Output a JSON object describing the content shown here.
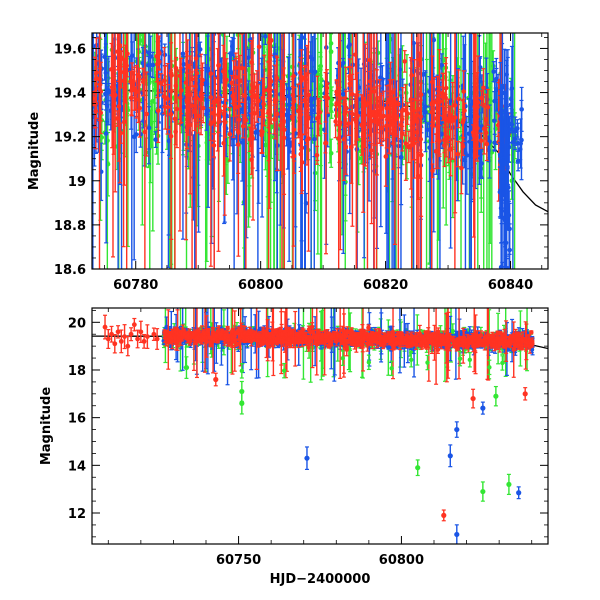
{
  "chart_data": [
    {
      "type": "scatter",
      "panel": "top",
      "xlabel": "",
      "ylabel": "Magnitude",
      "xlim": [
        60773,
        60846
      ],
      "ylim": [
        19.67,
        18.6
      ],
      "y_inverted": true,
      "grid": false,
      "xticks": [
        60780,
        60800,
        60820,
        60840
      ],
      "yticks": [
        18.6,
        18.8,
        19,
        19.2,
        19.4,
        19.6
      ],
      "ytick_labels": [
        "18.6",
        "18.8",
        "19",
        "19.2",
        "19.4",
        "19.6"
      ],
      "xtick_labels": [
        "60780",
        "60800",
        "60820",
        "60840"
      ],
      "colors": {
        "green": "#33e633",
        "blue": "#1a55e6",
        "red": "#ff3322",
        "model": "#000000"
      },
      "model_curve": {
        "x": [
          60773,
          60780,
          60790,
          60800,
          60810,
          60815,
          60820,
          60825,
          60830,
          60835,
          60838,
          60840,
          60842,
          60844,
          60846
        ],
        "y": [
          19.41,
          19.41,
          19.4,
          19.39,
          19.38,
          19.37,
          19.36,
          19.33,
          19.29,
          19.22,
          19.13,
          19.03,
          18.95,
          18.89,
          18.86
        ]
      },
      "series": [
        {
          "color": "green",
          "data_region": {
            "x_range": [
              60773,
              60840
            ],
            "y_center": [
              19.45,
              19.25
            ],
            "scatter": 0.14
          }
        },
        {
          "color": "blue",
          "data_region": {
            "x_range": [
              60773,
              60841
            ],
            "y_center": [
              19.45,
              19.25
            ],
            "scatter": 0.12
          }
        },
        {
          "color": "red",
          "data_region": {
            "x_range": [
              60773,
              60839
            ],
            "y_center": [
              19.43,
              19.25
            ],
            "scatter": 0.1
          }
        }
      ]
    },
    {
      "type": "scatter",
      "panel": "bottom",
      "xlabel": "HJD−2400000",
      "ylabel": "Magnitude",
      "xlim": [
        60705,
        60845
      ],
      "ylim": [
        20.6,
        10.7
      ],
      "y_inverted": true,
      "grid": false,
      "xticks": [
        60750,
        60800
      ],
      "yticks": [
        12,
        14,
        16,
        18,
        20
      ],
      "xtick_labels": [
        "60750",
        "60800"
      ],
      "ytick_labels": [
        "12",
        "14",
        "16",
        "18",
        "20"
      ],
      "model_curve": {
        "x": [
          60705,
          60750,
          60800,
          60830,
          60840,
          60845
        ],
        "y": [
          19.42,
          19.41,
          19.39,
          19.3,
          19.05,
          18.9
        ]
      },
      "early_points_red": [
        {
          "x": 60709,
          "y": 19.8
        },
        {
          "x": 60710,
          "y": 19.3
        },
        {
          "x": 60711,
          "y": 19.5
        },
        {
          "x": 60712,
          "y": 19.1
        },
        {
          "x": 60713,
          "y": 19.6
        },
        {
          "x": 60714,
          "y": 19.2
        },
        {
          "x": 60715,
          "y": 19.4
        },
        {
          "x": 60716,
          "y": 19.0
        },
        {
          "x": 60717,
          "y": 19.5
        },
        {
          "x": 60718,
          "y": 19.9
        },
        {
          "x": 60719,
          "y": 19.3
        },
        {
          "x": 60720,
          "y": 19.6
        },
        {
          "x": 60721,
          "y": 19.2
        },
        {
          "x": 60722,
          "y": 19.4
        },
        {
          "x": 60724,
          "y": 19.5
        },
        {
          "x": 60725,
          "y": 19.3
        }
      ],
      "outliers": [
        {
          "color": "blue",
          "x": 60817,
          "y": 11.1
        },
        {
          "color": "red",
          "x": 60813,
          "y": 11.9
        },
        {
          "color": "blue",
          "x": 60836,
          "y": 12.85
        },
        {
          "color": "green",
          "x": 60833,
          "y": 13.2
        },
        {
          "color": "green",
          "x": 60825,
          "y": 12.9
        },
        {
          "color": "blue",
          "x": 60771,
          "y": 14.3
        },
        {
          "color": "green",
          "x": 60805,
          "y": 13.9
        },
        {
          "color": "blue",
          "x": 60815,
          "y": 14.4
        },
        {
          "color": "blue",
          "x": 60817,
          "y": 15.5
        },
        {
          "color": "blue",
          "x": 60825,
          "y": 16.4
        },
        {
          "color": "green",
          "x": 60751,
          "y": 16.6
        },
        {
          "color": "green",
          "x": 60751,
          "y": 17.1
        },
        {
          "color": "red",
          "x": 60822,
          "y": 16.8
        },
        {
          "color": "green",
          "x": 60829,
          "y": 16.9
        },
        {
          "color": "red",
          "x": 60838,
          "y": 17.0
        },
        {
          "color": "red",
          "x": 60743,
          "y": 17.6
        },
        {
          "color": "green",
          "x": 60734,
          "y": 18.1
        }
      ]
    }
  ]
}
